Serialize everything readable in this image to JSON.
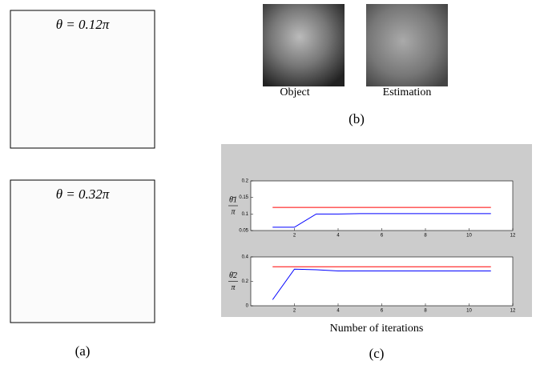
{
  "panel_a": {
    "label": "(a)",
    "boxes": [
      {
        "text": "θ = 0.12π"
      },
      {
        "text": "θ = 0.32π"
      }
    ]
  },
  "panel_b": {
    "label": "(b)",
    "images": [
      "Object",
      "Estimation"
    ]
  },
  "panel_c": {
    "label": "(c)",
    "x_label": "Number of iterations"
  },
  "chart_data": [
    {
      "type": "line",
      "y_label": {
        "numerator": "θ̄1",
        "denominator": "π"
      },
      "x": [
        1,
        2,
        3,
        4,
        5,
        6,
        7,
        8,
        9,
        10,
        11
      ],
      "series": [
        {
          "color": "#ff0000",
          "values": [
            0.12,
            0.12,
            0.12,
            0.12,
            0.12,
            0.12,
            0.12,
            0.12,
            0.12,
            0.12,
            0.12
          ]
        },
        {
          "color": "#0000ff",
          "values": [
            0.06,
            0.06,
            0.1,
            0.1,
            0.101,
            0.101,
            0.101,
            0.101,
            0.101,
            0.101,
            0.101
          ]
        }
      ],
      "xlim": [
        0,
        12
      ],
      "xticks": [
        2,
        4,
        6,
        8,
        10,
        12
      ],
      "ylim": [
        0.05,
        0.2
      ],
      "yticks": [
        0.05,
        0.1,
        0.15,
        0.2
      ]
    },
    {
      "type": "line",
      "y_label": {
        "numerator": "θ̄2",
        "denominator": "π"
      },
      "x": [
        1,
        2,
        3,
        4,
        5,
        6,
        7,
        8,
        9,
        10,
        11
      ],
      "series": [
        {
          "color": "#ff0000",
          "values": [
            0.32,
            0.32,
            0.32,
            0.32,
            0.32,
            0.32,
            0.32,
            0.32,
            0.32,
            0.32,
            0.32
          ]
        },
        {
          "color": "#0000ff",
          "values": [
            0.05,
            0.3,
            0.295,
            0.285,
            0.285,
            0.285,
            0.285,
            0.285,
            0.285,
            0.285,
            0.285
          ]
        }
      ],
      "xlim": [
        0,
        12
      ],
      "xticks": [
        2,
        4,
        6,
        8,
        10,
        12
      ],
      "ylim": [
        0,
        0.4
      ],
      "yticks": [
        0,
        0.2,
        0.4
      ]
    }
  ]
}
